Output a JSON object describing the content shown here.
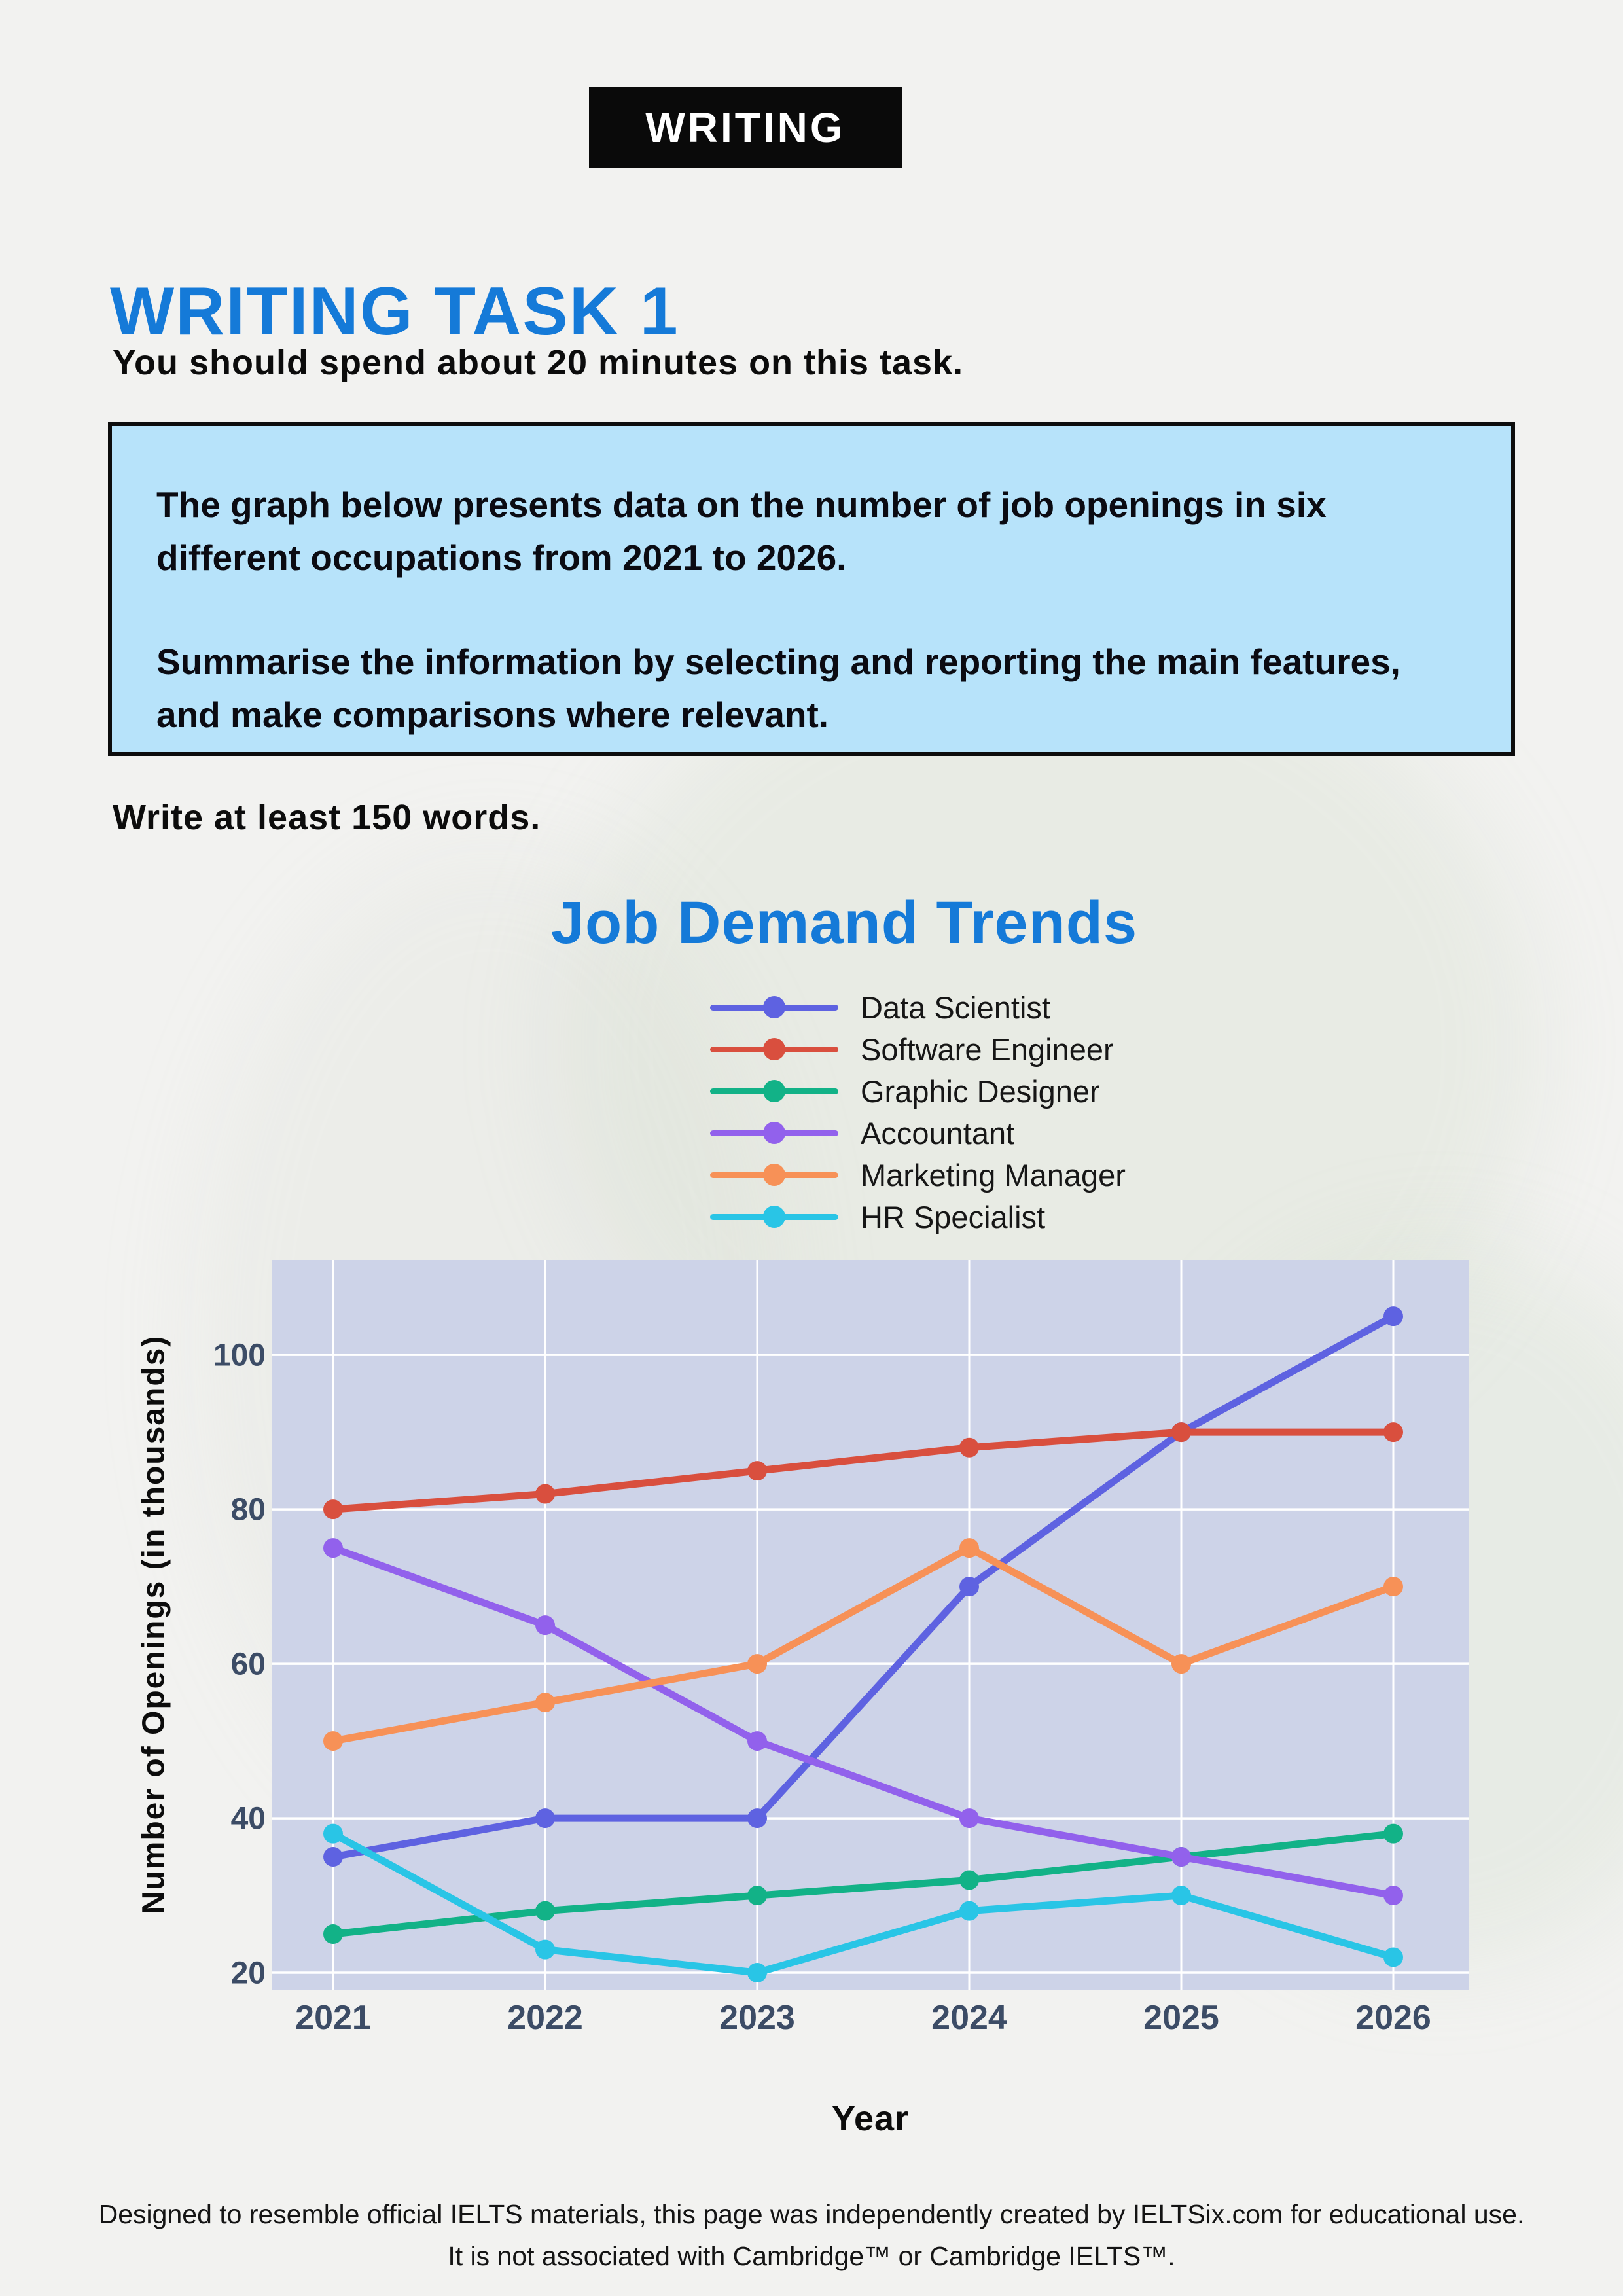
{
  "banner": {
    "label": "WRITING"
  },
  "header": {
    "title": "WRITING TASK 1",
    "time_note": "You should spend about 20 minutes on this task.",
    "length_note": "Write at least 150 words."
  },
  "task_box": {
    "paragraph1": "The graph below presents data on the number of job openings in six different occupations from 2021 to 2026.",
    "paragraph2": "Summarise the information by selecting and reporting the main features, and make comparisons where relevant."
  },
  "chart_data": {
    "type": "line",
    "title": "Job Demand Trends",
    "xlabel": "Year",
    "ylabel": "Number of Openings (in thousands)",
    "x": [
      2021,
      2022,
      2023,
      2024,
      2025,
      2026
    ],
    "yticks": [
      20,
      40,
      60,
      80,
      100
    ],
    "ylim": [
      17.8,
      112.3
    ],
    "grid": true,
    "legend_position": "top",
    "series": [
      {
        "name": "Data Scientist",
        "color": "#5e62e1",
        "values": [
          35,
          40,
          40,
          70,
          90,
          105
        ]
      },
      {
        "name": "Software Engineer",
        "color": "#d94f3e",
        "values": [
          80,
          82,
          85,
          88,
          90,
          90
        ]
      },
      {
        "name": "Graphic Designer",
        "color": "#12b287",
        "values": [
          25,
          28,
          30,
          32,
          35,
          38
        ]
      },
      {
        "name": "Accountant",
        "color": "#9261ec",
        "values": [
          75,
          65,
          50,
          40,
          35,
          30
        ]
      },
      {
        "name": "Marketing Manager",
        "color": "#f79157",
        "values": [
          50,
          55,
          60,
          75,
          60,
          70
        ]
      },
      {
        "name": "HR Specialist",
        "color": "#29c5e6",
        "values": [
          38,
          23,
          20,
          28,
          30,
          22
        ]
      }
    ]
  },
  "footer": {
    "line1": "Designed to resemble official IELTS materials, this page was independently created by IELTSix.com for educational use.",
    "line2": "It is not associated with Cambridge™ or Cambridge IELTS™."
  },
  "colors": {
    "accent_blue": "#157ad8",
    "box_bg": "#b7e3fa",
    "plot_bg": "#cdd3e8",
    "gridline": "#ffffff",
    "tick_color": "#3c4c66",
    "banner_bg": "#0a0a0a"
  }
}
